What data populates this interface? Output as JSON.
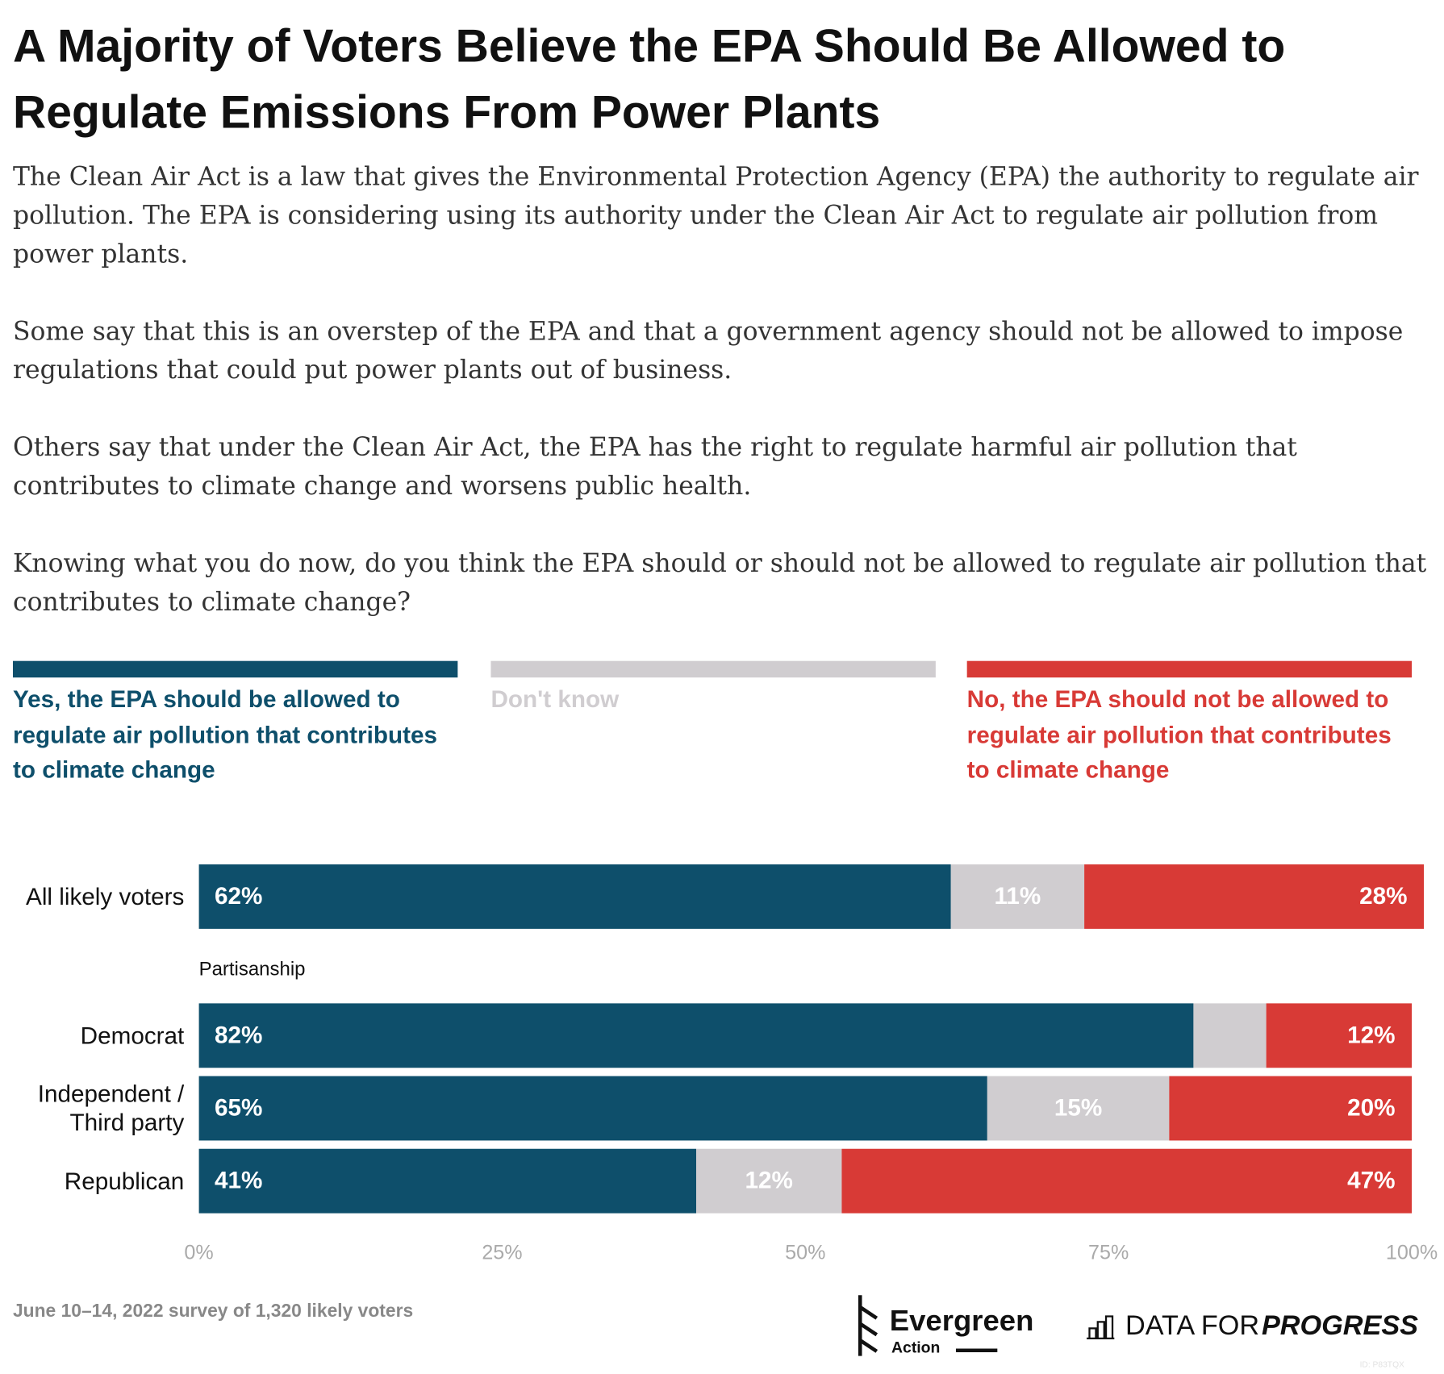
{
  "chart_data": {
    "type": "stacked-bar-horizontal",
    "title": "A Majority of Voters Believe the EPA Should Be Allowed to Regulate Emissions From Power Plants",
    "subtitle": [
      "The Clean Air Act is a law that gives the Environmental Protection Agency (EPA) the authority to regulate air pollution. The EPA is considering using its authority under the Clean Air Act to regulate air pollution from power plants.",
      "Some say that this is an overstep of the EPA and that a government agency should not be allowed to impose regulations that could put power plants out of business.",
      "Others say that under the Clean Air Act, the EPA has the right to regulate harmful air pollution that contributes to climate change and worsens public health.",
      "Knowing what you do now, do you think the EPA should or should not be allowed to regulate air pollution that contributes to climate change?"
    ],
    "categories": [
      "All likely voters",
      "Democrat",
      "Independent / Third party",
      "Republican"
    ],
    "group_label": "Partisanship",
    "series": [
      {
        "name": "Yes, the EPA should be allowed to regulate air pollution that contributes to climate change",
        "color": "#0e4f6b",
        "values": [
          62,
          82,
          65,
          41
        ],
        "value_labels": [
          "62%",
          "82%",
          "65%",
          "41%"
        ]
      },
      {
        "name": "Don't know",
        "color": "#d0cdd0",
        "values": [
          11,
          6,
          15,
          12
        ],
        "value_labels": [
          "11%",
          null,
          "15%",
          "12%"
        ]
      },
      {
        "name": "No, the EPA should not be allowed to regulate air pollution that contributes to climate change",
        "color": "#d83a36",
        "values": [
          28,
          12,
          20,
          47
        ],
        "value_labels": [
          "28%",
          "12%",
          "20%",
          "47%"
        ]
      }
    ],
    "xlim": [
      0,
      100
    ],
    "xticks": [
      {
        "value": 0,
        "label": "0%"
      },
      {
        "value": 25,
        "label": "25%"
      },
      {
        "value": 50,
        "label": "50%"
      },
      {
        "value": 75,
        "label": "75%"
      },
      {
        "value": 100,
        "label": "100%"
      }
    ],
    "note": "June 10–14, 2022 survey of 1,320 likely voters",
    "logos": [
      "Evergreen",
      "Action",
      "DATA FOR",
      "PROGRESS"
    ],
    "chart_id": "ID: P83TQX"
  }
}
